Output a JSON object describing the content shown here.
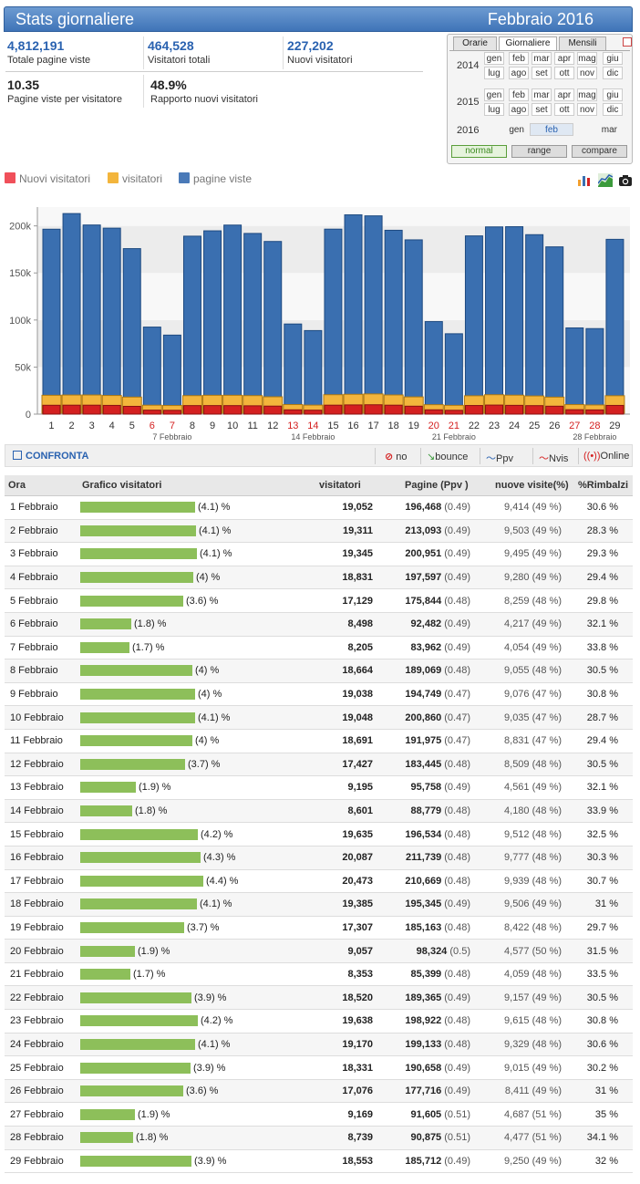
{
  "header": {
    "title": "Stats giornaliere",
    "period": "Febbraio 2016"
  },
  "stats": [
    {
      "value": "4,812,191",
      "label": "Totale pagine viste"
    },
    {
      "value": "464,528",
      "label": "Visitatori totali"
    },
    {
      "value": "227,202",
      "label": "Nuovi visitatori"
    },
    {
      "value": "10.35",
      "label": "Pagine viste per visitatore"
    },
    {
      "value": "48.9%",
      "label": "Rapporto nuovi visitatori"
    }
  ],
  "calendar": {
    "tabs": [
      "Orarie",
      "Giornaliere",
      "Mensili"
    ],
    "years": [
      "2014",
      "2015",
      "2016"
    ],
    "months_row1": [
      "gen",
      "feb",
      "mar",
      "apr",
      "mag",
      "giu"
    ],
    "months_row2": [
      "lug",
      "ago",
      "set",
      "ott",
      "nov",
      "dic"
    ],
    "months_2016": [
      "gen",
      "feb",
      "mar"
    ],
    "modes": [
      "normal",
      "range",
      "compare"
    ]
  },
  "legend": {
    "new": "Nuovi visitatori",
    "visitors": "visitatori",
    "pageviews": "pagine viste"
  },
  "colors": {
    "blue": "#3a6fb0",
    "orange": "#f3b53c",
    "red": "#d42020",
    "green": "#8dbf5a"
  },
  "chart_data": {
    "type": "bar",
    "categories": [
      "1",
      "2",
      "3",
      "4",
      "5",
      "6",
      "7",
      "8",
      "9",
      "10",
      "11",
      "12",
      "13",
      "14",
      "15",
      "16",
      "17",
      "18",
      "19",
      "20",
      "21",
      "22",
      "23",
      "24",
      "25",
      "26",
      "27",
      "28",
      "29"
    ],
    "weekend": [
      6,
      7,
      13,
      14,
      20,
      21,
      27,
      28
    ],
    "week_labels": [
      "7 Febbraio",
      "14 Febbraio",
      "21 Febbraio",
      "28 Febbraio"
    ],
    "yticks": [
      "0",
      "50k",
      "100k",
      "150k",
      "200k"
    ],
    "ylim": [
      0,
      220000
    ],
    "series": [
      {
        "name": "pagine viste",
        "values": [
          196468,
          213093,
          200951,
          197597,
          175844,
          92482,
          83962,
          189069,
          194749,
          200860,
          191975,
          183445,
          95758,
          88779,
          196534,
          211739,
          210669,
          195345,
          185163,
          98324,
          85399,
          189365,
          198922,
          199133,
          190658,
          177716,
          91605,
          90875,
          185712
        ]
      },
      {
        "name": "visitatori",
        "values": [
          19052,
          19311,
          19345,
          18831,
          17129,
          8498,
          8205,
          18664,
          19038,
          19048,
          18691,
          17427,
          9195,
          8601,
          19635,
          20087,
          20473,
          19385,
          17307,
          9057,
          8353,
          18520,
          19638,
          19170,
          18331,
          17076,
          9169,
          8739,
          18553
        ]
      },
      {
        "name": "Nuovi visitatori",
        "values": [
          9414,
          9503,
          9495,
          9280,
          8259,
          4217,
          4054,
          9055,
          9076,
          9035,
          8831,
          8509,
          4561,
          4180,
          9512,
          9777,
          9939,
          9506,
          8422,
          4577,
          4059,
          9157,
          9615,
          9329,
          9015,
          8411,
          4687,
          4477,
          9250
        ]
      }
    ]
  },
  "compare": {
    "label": "CONFRONTA",
    "items": [
      "no",
      "bounce",
      "Ppv",
      "Nvis",
      "Online"
    ]
  },
  "table": {
    "headers": [
      "Ora",
      "Grafico visitatori",
      "visitatori",
      "Pagine (Ppv )",
      "nuove visite(%)",
      "%Rimbalzi"
    ],
    "rows": [
      {
        "d": "1 Febbraio",
        "p": "(4.1) %",
        "v": "19,052",
        "pg": "196,468",
        "ppv": "(0.49)",
        "nv": "9,414 (49 %)",
        "r": "30.6 %"
      },
      {
        "d": "2 Febbraio",
        "p": "(4.1) %",
        "v": "19,311",
        "pg": "213,093",
        "ppv": "(0.49)",
        "nv": "9,503 (49 %)",
        "r": "28.3 %"
      },
      {
        "d": "3 Febbraio",
        "p": "(4.1) %",
        "v": "19,345",
        "pg": "200,951",
        "ppv": "(0.49)",
        "nv": "9,495 (49 %)",
        "r": "29.3 %"
      },
      {
        "d": "4 Febbraio",
        "p": "(4) %",
        "v": "18,831",
        "pg": "197,597",
        "ppv": "(0.49)",
        "nv": "9,280 (49 %)",
        "r": "29.4 %"
      },
      {
        "d": "5 Febbraio",
        "p": "(3.6) %",
        "v": "17,129",
        "pg": "175,844",
        "ppv": "(0.48)",
        "nv": "8,259 (48 %)",
        "r": "29.8 %"
      },
      {
        "d": "6 Febbraio",
        "p": "(1.8) %",
        "v": "8,498",
        "pg": "92,482",
        "ppv": "(0.49)",
        "nv": "4,217 (49 %)",
        "r": "32.1 %"
      },
      {
        "d": "7 Febbraio",
        "p": "(1.7) %",
        "v": "8,205",
        "pg": "83,962",
        "ppv": "(0.49)",
        "nv": "4,054 (49 %)",
        "r": "33.8 %"
      },
      {
        "d": "8 Febbraio",
        "p": "(4) %",
        "v": "18,664",
        "pg": "189,069",
        "ppv": "(0.48)",
        "nv": "9,055 (48 %)",
        "r": "30.5 %"
      },
      {
        "d": "9 Febbraio",
        "p": "(4) %",
        "v": "19,038",
        "pg": "194,749",
        "ppv": "(0.47)",
        "nv": "9,076 (47 %)",
        "r": "30.8 %"
      },
      {
        "d": "10 Febbraio",
        "p": "(4.1) %",
        "v": "19,048",
        "pg": "200,860",
        "ppv": "(0.47)",
        "nv": "9,035 (47 %)",
        "r": "28.7 %"
      },
      {
        "d": "11 Febbraio",
        "p": "(4) %",
        "v": "18,691",
        "pg": "191,975",
        "ppv": "(0.47)",
        "nv": "8,831 (47 %)",
        "r": "29.4 %"
      },
      {
        "d": "12 Febbraio",
        "p": "(3.7) %",
        "v": "17,427",
        "pg": "183,445",
        "ppv": "(0.48)",
        "nv": "8,509 (48 %)",
        "r": "30.5 %"
      },
      {
        "d": "13 Febbraio",
        "p": "(1.9) %",
        "v": "9,195",
        "pg": "95,758",
        "ppv": "(0.49)",
        "nv": "4,561 (49 %)",
        "r": "32.1 %"
      },
      {
        "d": "14 Febbraio",
        "p": "(1.8) %",
        "v": "8,601",
        "pg": "88,779",
        "ppv": "(0.48)",
        "nv": "4,180 (48 %)",
        "r": "33.9 %"
      },
      {
        "d": "15 Febbraio",
        "p": "(4.2) %",
        "v": "19,635",
        "pg": "196,534",
        "ppv": "(0.48)",
        "nv": "9,512 (48 %)",
        "r": "32.5 %"
      },
      {
        "d": "16 Febbraio",
        "p": "(4.3) %",
        "v": "20,087",
        "pg": "211,739",
        "ppv": "(0.48)",
        "nv": "9,777 (48 %)",
        "r": "30.3 %"
      },
      {
        "d": "17 Febbraio",
        "p": "(4.4) %",
        "v": "20,473",
        "pg": "210,669",
        "ppv": "(0.48)",
        "nv": "9,939 (48 %)",
        "r": "30.7 %"
      },
      {
        "d": "18 Febbraio",
        "p": "(4.1) %",
        "v": "19,385",
        "pg": "195,345",
        "ppv": "(0.49)",
        "nv": "9,506 (49 %)",
        "r": "31 %"
      },
      {
        "d": "19 Febbraio",
        "p": "(3.7) %",
        "v": "17,307",
        "pg": "185,163",
        "ppv": "(0.48)",
        "nv": "8,422 (48 %)",
        "r": "29.7 %"
      },
      {
        "d": "20 Febbraio",
        "p": "(1.9) %",
        "v": "9,057",
        "pg": "98,324",
        "ppv": "(0.5)",
        "nv": "4,577 (50 %)",
        "r": "31.5 %"
      },
      {
        "d": "21 Febbraio",
        "p": "(1.7) %",
        "v": "8,353",
        "pg": "85,399",
        "ppv": "(0.48)",
        "nv": "4,059 (48 %)",
        "r": "33.5 %"
      },
      {
        "d": "22 Febbraio",
        "p": "(3.9) %",
        "v": "18,520",
        "pg": "189,365",
        "ppv": "(0.49)",
        "nv": "9,157 (49 %)",
        "r": "30.5 %"
      },
      {
        "d": "23 Febbraio",
        "p": "(4.2) %",
        "v": "19,638",
        "pg": "198,922",
        "ppv": "(0.48)",
        "nv": "9,615 (48 %)",
        "r": "30.8 %"
      },
      {
        "d": "24 Febbraio",
        "p": "(4.1) %",
        "v": "19,170",
        "pg": "199,133",
        "ppv": "(0.48)",
        "nv": "9,329 (48 %)",
        "r": "30.6 %"
      },
      {
        "d": "25 Febbraio",
        "p": "(3.9) %",
        "v": "18,331",
        "pg": "190,658",
        "ppv": "(0.49)",
        "nv": "9,015 (49 %)",
        "r": "30.2 %"
      },
      {
        "d": "26 Febbraio",
        "p": "(3.6) %",
        "v": "17,076",
        "pg": "177,716",
        "ppv": "(0.49)",
        "nv": "8,411 (49 %)",
        "r": "31 %"
      },
      {
        "d": "27 Febbraio",
        "p": "(1.9) %",
        "v": "9,169",
        "pg": "91,605",
        "ppv": "(0.51)",
        "nv": "4,687 (51 %)",
        "r": "35 %"
      },
      {
        "d": "28 Febbraio",
        "p": "(1.8) %",
        "v": "8,739",
        "pg": "90,875",
        "ppv": "(0.51)",
        "nv": "4,477 (51 %)",
        "r": "34.1 %"
      },
      {
        "d": "29 Febbraio",
        "p": "(3.9) %",
        "v": "18,553",
        "pg": "185,712",
        "ppv": "(0.49)",
        "nv": "9,250 (49 %)",
        "r": "32 %"
      }
    ]
  }
}
